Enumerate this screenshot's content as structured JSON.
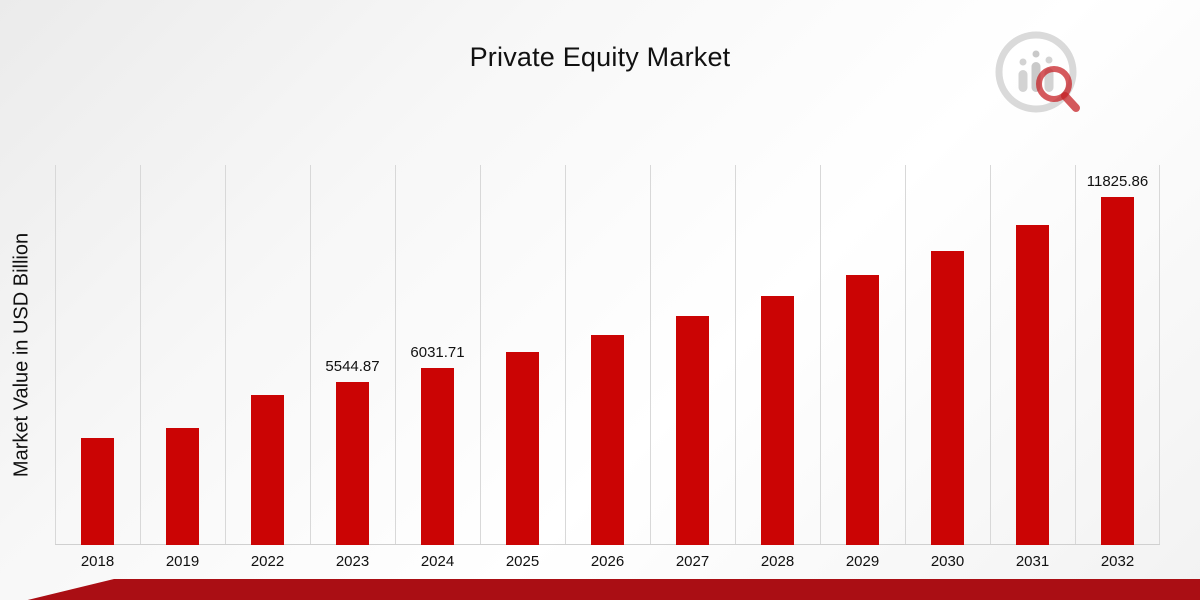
{
  "page": {
    "title": "Private Equity Market",
    "logo_name": "market-research-brand-logo"
  },
  "chart_data": {
    "type": "bar",
    "title": "Private Equity Market",
    "xlabel": "",
    "ylabel": "Market Value in USD Billion",
    "categories": [
      "2018",
      "2019",
      "2022",
      "2023",
      "2024",
      "2025",
      "2026",
      "2027",
      "2028",
      "2029",
      "2030",
      "2031",
      "2032"
    ],
    "values": [
      3640,
      3990,
      5100,
      5544.87,
      6031.71,
      6560,
      7140,
      7770,
      8450,
      9190,
      10000,
      10870,
      11825.86
    ],
    "data_labels": [
      "",
      "",
      "",
      "5544.87",
      "6031.71",
      "",
      "",
      "",
      "",
      "",
      "",
      "",
      "11825.86"
    ],
    "ylim": [
      0,
      12920
    ],
    "grid": "vertical",
    "legend": "none",
    "bar_color": "#cb0404",
    "gridline_color": "#d8d8d8",
    "footer_color": "#aa0e14",
    "logo_red": "#c00b10",
    "logo_gray": "#cfcfcf"
  }
}
